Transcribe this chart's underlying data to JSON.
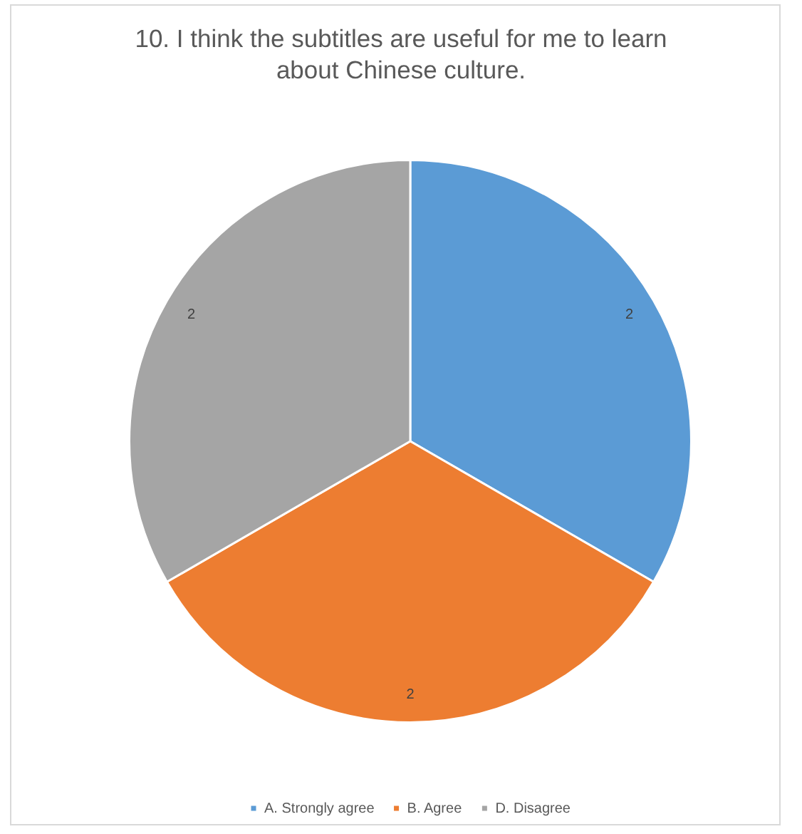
{
  "chart_data": {
    "type": "pie",
    "title": "10. I think the subtitles are useful for me to learn about Chinese culture.",
    "categories": [
      "A. Strongly agree",
      "B. Agree",
      "D. Disagree"
    ],
    "values": [
      2,
      2,
      2
    ],
    "colors": [
      "#5b9bd5",
      "#ed7d31",
      "#a5a5a5"
    ],
    "data_labels": true,
    "legend": "bottom"
  }
}
